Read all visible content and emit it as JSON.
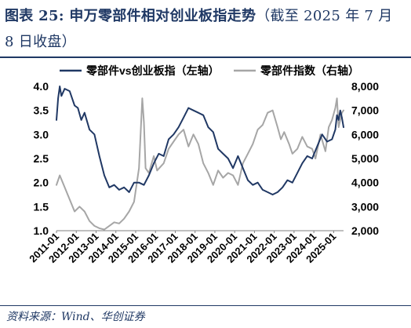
{
  "figure": {
    "label": "图表 25:",
    "title": "申万零部件相对创业板指走势",
    "suffix": "（截至 2025 年 7 月 8 日收盘）",
    "source": "资料来源：Wind、华创证券"
  },
  "colors": {
    "title": "#1f3864",
    "series_1": "#203864",
    "series_2": "#a6a6a6",
    "axis_text": "#000000"
  },
  "chart_data": {
    "type": "line",
    "x_tick_labels": [
      "2011-01",
      "2012-01",
      "2013-01",
      "2014-01",
      "2015-01",
      "2016-01",
      "2017-01",
      "2018-01",
      "2019-01",
      "2020-01",
      "2021-01",
      "2022-01",
      "2023-01",
      "2024-01",
      "2025-01"
    ],
    "x_range": [
      "2011-01",
      "2025-07"
    ],
    "y_left": {
      "tick_labels": [
        "1.0",
        "1.5",
        "2.0",
        "2.5",
        "3.0",
        "3.5",
        "4.0"
      ],
      "range": [
        1.0,
        4.0
      ]
    },
    "y_right": {
      "tick_labels": [
        "2,000",
        "3,000",
        "4,000",
        "5,000",
        "6,000",
        "7,000",
        "8,000"
      ],
      "range": [
        2000,
        8000
      ]
    },
    "grid": false,
    "legend_position": "top",
    "series": [
      {
        "name": "零部件vs创业板指（左轴）",
        "axis": "left",
        "points": [
          [
            "2011-01",
            3.3
          ],
          [
            "2011-02",
            3.75
          ],
          [
            "2011-03",
            4.0
          ],
          [
            "2011-04",
            3.8
          ],
          [
            "2011-06",
            3.95
          ],
          [
            "2011-09",
            3.9
          ],
          [
            "2011-12",
            3.6
          ],
          [
            "2012-02",
            3.55
          ],
          [
            "2012-04",
            3.3
          ],
          [
            "2012-06",
            3.45
          ],
          [
            "2012-09",
            3.1
          ],
          [
            "2012-12",
            3.0
          ],
          [
            "2013-03",
            2.55
          ],
          [
            "2013-06",
            2.15
          ],
          [
            "2013-09",
            1.9
          ],
          [
            "2013-12",
            1.95
          ],
          [
            "2014-03",
            1.85
          ],
          [
            "2014-06",
            1.9
          ],
          [
            "2014-09",
            1.8
          ],
          [
            "2014-12",
            2.0
          ],
          [
            "2015-03",
            2.0
          ],
          [
            "2015-06",
            1.95
          ],
          [
            "2015-09",
            2.15
          ],
          [
            "2015-12",
            2.4
          ],
          [
            "2016-03",
            2.6
          ],
          [
            "2016-06",
            2.55
          ],
          [
            "2016-09",
            2.9
          ],
          [
            "2016-12",
            3.0
          ],
          [
            "2017-03",
            3.15
          ],
          [
            "2017-06",
            3.35
          ],
          [
            "2017-09",
            3.55
          ],
          [
            "2017-12",
            3.5
          ],
          [
            "2018-03",
            3.45
          ],
          [
            "2018-06",
            3.4
          ],
          [
            "2018-09",
            3.15
          ],
          [
            "2018-12",
            3.05
          ],
          [
            "2019-03",
            2.7
          ],
          [
            "2019-06",
            2.6
          ],
          [
            "2019-09",
            2.5
          ],
          [
            "2019-12",
            2.3
          ],
          [
            "2020-03",
            2.55
          ],
          [
            "2020-06",
            2.3
          ],
          [
            "2020-09",
            2.05
          ],
          [
            "2020-12",
            1.95
          ],
          [
            "2021-03",
            2.0
          ],
          [
            "2021-06",
            1.85
          ],
          [
            "2021-09",
            1.8
          ],
          [
            "2021-12",
            1.75
          ],
          [
            "2022-03",
            1.8
          ],
          [
            "2022-06",
            1.9
          ],
          [
            "2022-09",
            2.05
          ],
          [
            "2022-12",
            2.0
          ],
          [
            "2023-03",
            2.2
          ],
          [
            "2023-06",
            2.4
          ],
          [
            "2023-09",
            2.55
          ],
          [
            "2023-12",
            2.5
          ],
          [
            "2024-03",
            2.75
          ],
          [
            "2024-06",
            3.0
          ],
          [
            "2024-09",
            2.85
          ],
          [
            "2024-12",
            2.9
          ],
          [
            "2025-02",
            3.1
          ],
          [
            "2025-03",
            3.4
          ],
          [
            "2025-04",
            3.3
          ],
          [
            "2025-05",
            3.5
          ],
          [
            "2025-06",
            3.35
          ],
          [
            "2025-07",
            3.15
          ]
        ]
      },
      {
        "name": "零部件指数（右轴）",
        "axis": "right",
        "points": [
          [
            "2011-01",
            3900
          ],
          [
            "2011-03",
            4300
          ],
          [
            "2011-06",
            3800
          ],
          [
            "2011-09",
            3300
          ],
          [
            "2011-12",
            2800
          ],
          [
            "2012-03",
            3000
          ],
          [
            "2012-06",
            2800
          ],
          [
            "2012-09",
            2400
          ],
          [
            "2012-12",
            2200
          ],
          [
            "2013-03",
            2100
          ],
          [
            "2013-06",
            2050
          ],
          [
            "2013-09",
            2200
          ],
          [
            "2013-12",
            2350
          ],
          [
            "2014-03",
            2300
          ],
          [
            "2014-06",
            2500
          ],
          [
            "2014-09",
            2800
          ],
          [
            "2014-12",
            3200
          ],
          [
            "2015-03",
            4600
          ],
          [
            "2015-05",
            7500
          ],
          [
            "2015-06",
            6500
          ],
          [
            "2015-07",
            4600
          ],
          [
            "2015-09",
            4400
          ],
          [
            "2015-12",
            5100
          ],
          [
            "2016-02",
            4500
          ],
          [
            "2016-06",
            4800
          ],
          [
            "2016-09",
            5400
          ],
          [
            "2016-12",
            5700
          ],
          [
            "2017-03",
            6000
          ],
          [
            "2017-06",
            6200
          ],
          [
            "2017-09",
            5500
          ],
          [
            "2017-12",
            6000
          ],
          [
            "2018-03",
            5600
          ],
          [
            "2018-06",
            4800
          ],
          [
            "2018-09",
            4400
          ],
          [
            "2018-12",
            3900
          ],
          [
            "2019-03",
            4500
          ],
          [
            "2019-06",
            4200
          ],
          [
            "2019-09",
            4400
          ],
          [
            "2019-12",
            4300
          ],
          [
            "2020-03",
            3900
          ],
          [
            "2020-06",
            4800
          ],
          [
            "2020-09",
            5200
          ],
          [
            "2020-12",
            5600
          ],
          [
            "2021-03",
            6200
          ],
          [
            "2021-06",
            6400
          ],
          [
            "2021-09",
            6900
          ],
          [
            "2021-12",
            7000
          ],
          [
            "2022-03",
            6300
          ],
          [
            "2022-05",
            5800
          ],
          [
            "2022-07",
            6100
          ],
          [
            "2022-10",
            5600
          ],
          [
            "2022-12",
            5200
          ],
          [
            "2023-03",
            5400
          ],
          [
            "2023-06",
            5900
          ],
          [
            "2023-09",
            5500
          ],
          [
            "2023-12",
            5400
          ],
          [
            "2024-02",
            5000
          ],
          [
            "2024-05",
            6000
          ],
          [
            "2024-08",
            5300
          ],
          [
            "2024-10",
            6300
          ],
          [
            "2024-12",
            6600
          ],
          [
            "2025-02",
            7100
          ],
          [
            "2025-03",
            7500
          ],
          [
            "2025-04",
            6300
          ],
          [
            "2025-06",
            6900
          ],
          [
            "2025-07",
            7000
          ]
        ]
      }
    ]
  }
}
